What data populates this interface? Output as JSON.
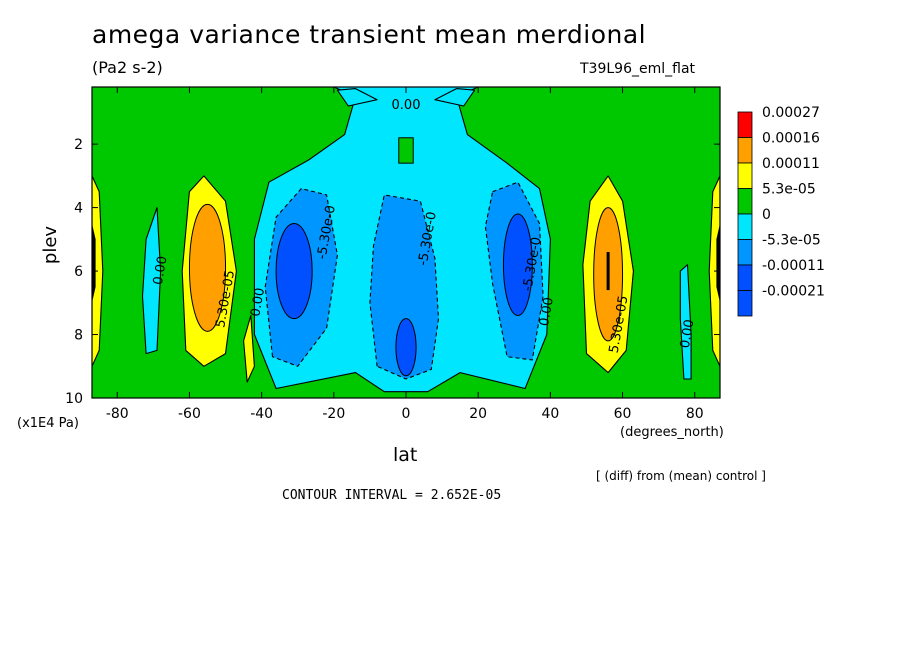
{
  "header": {
    "title": "amega variance transient mean merdional",
    "units": "(Pa2 s-2)",
    "run": "T39L96_eml_flat"
  },
  "footer": {
    "y_multiplier": "(x1E4 Pa)",
    "x_units": "(degrees_north)",
    "diff_note": "[ (diff) from (mean) control ]",
    "contour_interval": "CONTOUR INTERVAL = 2.652E-05"
  },
  "colors": {
    "red": "#ff0000",
    "orange": "#ffa000",
    "yellow": "#ffff00",
    "green": "#00c800",
    "cyan": "#00e6ff",
    "blue1": "#0096ff",
    "blue2": "#0050ff"
  },
  "chart_data": {
    "type": "contour",
    "xlabel": "lat",
    "ylabel": "plev",
    "xlim": [
      -87,
      87
    ],
    "ylim": [
      10,
      0.2
    ],
    "x_ticks": [
      -80,
      -60,
      -40,
      -20,
      0,
      20,
      40,
      60,
      80
    ],
    "y_ticks": [
      2,
      4,
      6,
      8,
      10
    ],
    "legend": {
      "placement": "right",
      "labels": [
        "0.00027",
        "0.00016",
        "0.00011",
        "5.3e-05",
        "0",
        "-5.3e-05",
        "-0.00011",
        "-0.00021"
      ],
      "colors": [
        "#ff0000",
        "#ffa000",
        "#ffff00",
        "#00c800",
        "#00e6ff",
        "#0096ff",
        "#0050ff",
        "#0050ff"
      ]
    },
    "contour_labels": [
      {
        "text": "0.00",
        "lat": 0,
        "plev": 0.9
      },
      {
        "text": "0.00",
        "lat": -67,
        "plev": 6.0
      },
      {
        "text": "0.00",
        "lat": -40,
        "plev": 7.0
      },
      {
        "text": "5.30e-05",
        "lat": -49,
        "plev": 6.9
      },
      {
        "text": "-5.30e-0",
        "lat": -21,
        "plev": 4.8
      },
      {
        "text": "-5.30e-0",
        "lat": 7,
        "plev": 5.0
      },
      {
        "text": "-5.30e-0",
        "lat": 36,
        "plev": 5.8
      },
      {
        "text": "0.00",
        "lat": 40,
        "plev": 7.3
      },
      {
        "text": "5.30e-05",
        "lat": 60,
        "plev": 7.7
      },
      {
        "text": "0.00",
        "lat": 79,
        "plev": 8.0
      }
    ]
  }
}
